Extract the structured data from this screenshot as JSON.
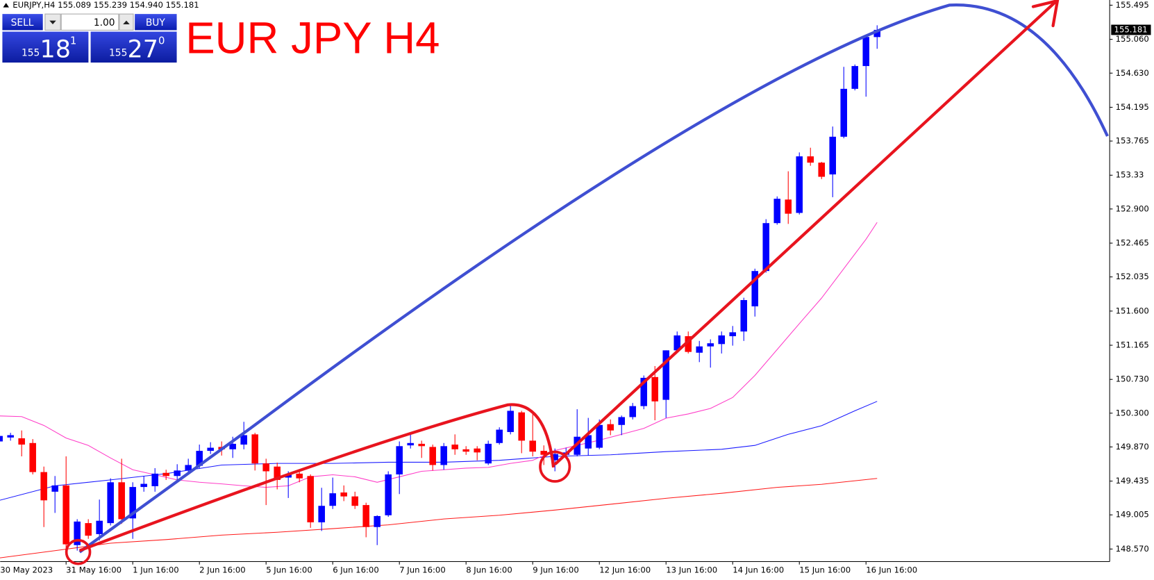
{
  "info": "EURJPY,H4  155.089 155.239 154.940 155.181",
  "trade_panel": {
    "sell": "SELL",
    "buy": "BUY",
    "lot": "1.00",
    "bid": {
      "big": "155",
      "main": "18",
      "small": "1"
    },
    "ask": {
      "big": "155",
      "main": "27",
      "small": "0"
    }
  },
  "chart_data": {
    "type": "candlestick",
    "title": "EUR JPY H4",
    "categories": [
      "30 May 2023",
      null,
      null,
      null,
      null,
      null,
      "31 May 16:00",
      null,
      null,
      null,
      null,
      null,
      "1 Jun 16:00",
      null,
      null,
      null,
      null,
      null,
      "2 Jun 16:00",
      null,
      null,
      null,
      null,
      null,
      "5 Jun 16:00",
      null,
      null,
      null,
      null,
      null,
      "6 Jun 16:00",
      null,
      null,
      null,
      null,
      null,
      "7 Jun 16:00",
      null,
      null,
      null,
      null,
      null,
      "8 Jun 16:00",
      null,
      null,
      null,
      null,
      null,
      "9 Jun 16:00",
      null,
      null,
      null,
      null,
      null,
      "12 Jun 16:00",
      null,
      null,
      null,
      null,
      null,
      "13 Jun 16:00",
      null,
      null,
      null,
      null,
      null,
      "14 Jun 16:00",
      null,
      null,
      null,
      null,
      null,
      "15 Jun 16:00",
      null,
      null,
      null,
      null,
      null,
      "16 Jun 16:00",
      null
    ],
    "open": [
      149.94,
      149.99,
      149.98,
      149.92,
      149.55,
      149.3,
      149.38,
      148.62,
      148.9,
      148.76,
      148.9,
      149.42,
      148.96,
      149.36,
      149.37,
      149.54,
      149.5,
      149.57,
      149.63,
      149.82,
      149.87,
      149.84,
      149.9,
      150.03,
      149.66,
      149.62,
      149.48,
      149.53,
      149.5,
      148.91,
      149.12,
      149.29,
      149.24,
      149.13,
      148.85,
      149.0,
      149.52,
      149.89,
      149.91,
      149.87,
      149.64,
      149.9,
      149.84,
      149.85,
      149.66,
      149.92,
      150.06,
      150.31,
      149.95,
      149.82,
      149.7,
      149.77,
      149.77,
      149.85,
      149.86,
      150.16,
      150.15,
      150.25,
      150.39,
      150.76,
      150.47,
      151.1,
      151.28,
      151.07,
      151.15,
      151.18,
      151.28,
      151.34,
      151.66,
      152.11,
      152.72,
      153.02,
      152.85,
      153.57,
      153.49,
      153.34,
      153.82,
      154.43,
      154.72,
      155.089
    ],
    "high": [
      150.26,
      150.05,
      150.08,
      149.97,
      149.62,
      149.5,
      149.75,
      148.95,
      148.95,
      149.2,
      149.47,
      149.72,
      149.42,
      149.5,
      149.6,
      149.58,
      149.65,
      149.72,
      149.9,
      149.93,
      149.94,
      150.0,
      150.19,
      150.05,
      149.72,
      149.67,
      149.56,
      149.58,
      149.52,
      149.35,
      149.48,
      149.38,
      149.3,
      149.16,
      149.0,
      149.56,
      149.94,
      150.04,
      149.95,
      149.9,
      149.92,
      150.03,
      149.88,
      149.88,
      149.95,
      150.12,
      150.41,
      150.33,
      150.32,
      149.89,
      149.85,
      149.86,
      150.35,
      150.24,
      150.22,
      150.22,
      150.27,
      150.43,
      150.78,
      150.9,
      151.1,
      151.34,
      151.34,
      151.22,
      151.24,
      151.34,
      151.41,
      151.77,
      152.14,
      152.77,
      153.06,
      153.38,
      153.62,
      153.68,
      153.5,
      153.95,
      154.71,
      154.74,
      155.09,
      155.239
    ],
    "low": [
      149.78,
      149.95,
      149.75,
      149.52,
      148.85,
      149.03,
      148.58,
      148.55,
      148.7,
      148.68,
      148.87,
      148.89,
      148.7,
      149.3,
      149.3,
      149.45,
      149.43,
      149.55,
      149.6,
      149.78,
      149.76,
      149.73,
      149.84,
      149.57,
      149.13,
      149.33,
      149.22,
      149.42,
      148.84,
      148.8,
      149.08,
      149.18,
      149.08,
      148.72,
      148.62,
      148.98,
      149.27,
      149.85,
      149.73,
      149.57,
      149.58,
      149.77,
      149.77,
      149.7,
      149.64,
      149.9,
      150.03,
      149.79,
      149.75,
      149.64,
      149.56,
      149.72,
      149.75,
      149.76,
      149.84,
      150.02,
      150.02,
      150.22,
      150.35,
      150.21,
      150.24,
      151.08,
      151.06,
      150.95,
      150.88,
      151.06,
      151.16,
      151.22,
      151.53,
      152.09,
      152.7,
      152.71,
      152.83,
      153.45,
      153.28,
      153.05,
      153.8,
      154.41,
      154.33,
      154.94
    ],
    "close": [
      150.01,
      150.02,
      149.9,
      149.55,
      149.19,
      149.38,
      148.63,
      148.92,
      148.74,
      148.93,
      149.42,
      148.95,
      149.36,
      149.4,
      149.53,
      149.5,
      149.57,
      149.64,
      149.82,
      149.86,
      149.84,
      149.91,
      150.02,
      149.66,
      149.56,
      149.45,
      149.52,
      149.47,
      148.91,
      149.12,
      149.28,
      149.24,
      149.12,
      148.85,
      148.99,
      149.52,
      149.88,
      149.92,
      149.88,
      149.64,
      149.88,
      149.84,
      149.81,
      149.8,
      149.91,
      150.09,
      150.33,
      149.95,
      149.81,
      149.77,
      149.78,
      149.8,
      150.0,
      150.02,
      150.15,
      150.08,
      150.25,
      150.39,
      150.75,
      150.45,
      151.1,
      151.29,
      151.08,
      151.15,
      151.19,
      151.29,
      151.33,
      151.74,
      152.11,
      152.72,
      153.03,
      152.84,
      153.57,
      153.49,
      153.31,
      153.82,
      154.43,
      154.72,
      155.09,
      155.181
    ],
    "up_color": "#0000ff",
    "down_color": "#ff0000",
    "series": [
      {
        "color": "#1a1aff",
        "x": [
          0,
          5,
          10,
          15,
          20,
          25,
          30,
          35,
          40,
          45,
          50,
          55,
          60,
          65,
          68,
          71,
          74,
          77,
          79
        ],
        "values": [
          149.19,
          149.375,
          149.45,
          149.53,
          149.64,
          149.66,
          149.66,
          149.675,
          149.675,
          149.7,
          149.75,
          149.77,
          149.81,
          149.84,
          149.89,
          150.03,
          150.14,
          150.33,
          150.45
        ]
      },
      {
        "color": "#ff3cc8",
        "x": [
          0,
          2,
          4,
          6,
          8,
          10,
          12,
          14,
          16,
          18,
          20,
          22,
          24,
          26,
          28,
          30,
          32,
          34,
          36,
          38,
          40,
          42,
          44,
          46,
          48,
          50,
          52,
          54,
          56,
          58,
          60,
          62,
          64,
          66,
          68,
          70,
          72,
          74,
          76,
          78,
          79
        ],
        "values": [
          150.265,
          150.256,
          150.144,
          149.984,
          149.89,
          149.73,
          149.58,
          149.516,
          149.45,
          149.42,
          149.4,
          149.375,
          149.356,
          149.375,
          149.49,
          149.516,
          149.49,
          149.42,
          149.49,
          149.56,
          149.58,
          149.6,
          149.61,
          149.66,
          149.7,
          149.825,
          149.89,
          149.956,
          150.03,
          150.106,
          150.237,
          150.29,
          150.36,
          150.5,
          150.78,
          151.11,
          151.44,
          151.765,
          152.14,
          152.515,
          152.73
        ]
      },
      {
        "color": "#ff1a1a",
        "x": [
          0,
          5,
          10,
          15,
          20,
          25,
          30,
          35,
          40,
          45,
          50,
          55,
          60,
          65,
          70,
          74,
          79
        ],
        "values": [
          148.457,
          148.55,
          148.644,
          148.69,
          148.747,
          148.784,
          148.83,
          148.878,
          148.953,
          149.0,
          149.066,
          149.14,
          149.216,
          149.28,
          149.356,
          149.394,
          149.469
        ]
      }
    ],
    "ylim": [
      148.41,
      155.561
    ],
    "yticks": [
      155.495,
      {
        "value": 155.06,
        "label": "155.060"
      },
      {
        "value": 154.63,
        "label": "154.630"
      },
      154.195,
      153.765,
      153.33,
      {
        "value": 152.9,
        "label": "152.900"
      },
      152.465,
      152.035,
      {
        "value": 151.6,
        "label": "151.600"
      },
      151.165,
      {
        "value": 150.73,
        "label": "150.730"
      },
      {
        "value": 150.3,
        "label": "150.300"
      },
      {
        "value": 149.87,
        "label": "149.870"
      },
      149.435,
      149.005,
      {
        "value": 148.57,
        "label": "148.570"
      }
    ],
    "last_price": 155.181
  }
}
